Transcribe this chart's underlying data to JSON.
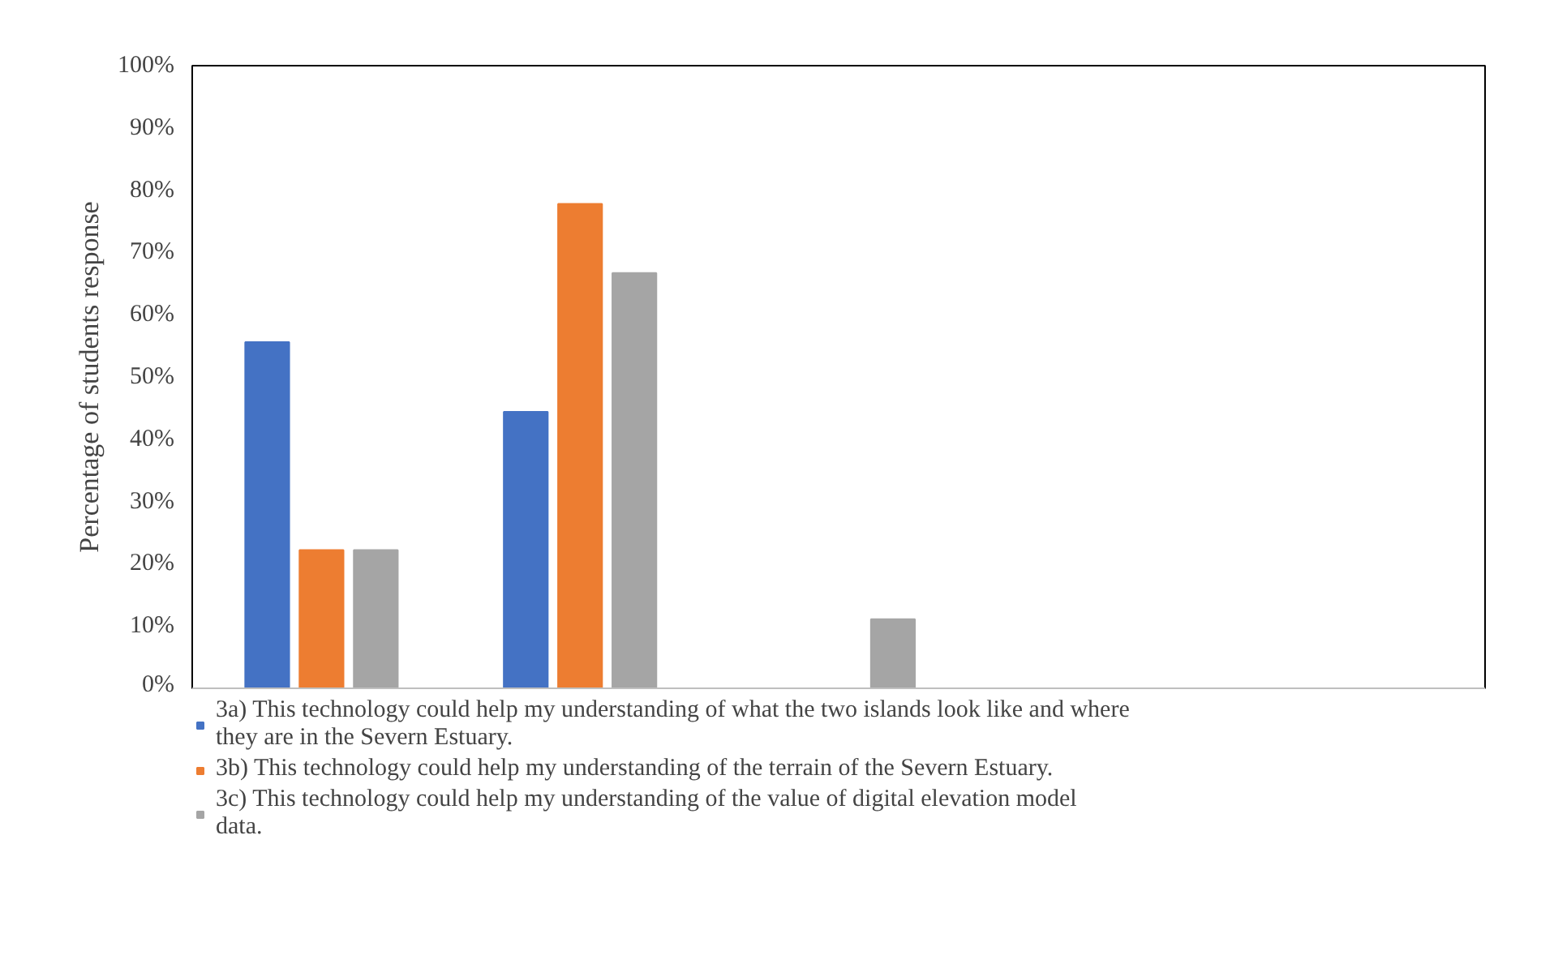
{
  "chart_data": {
    "type": "bar",
    "ylabel": "Percentage of students response",
    "categories": [
      null,
      null,
      null,
      null,
      null
    ],
    "series": [
      {
        "name": "3a) This technology could help my understanding of what the two islands look like and where they are in the Severn Estuary.",
        "color": "#4472c4",
        "values": [
          55.6,
          44.4,
          0,
          0,
          0
        ]
      },
      {
        "name": "3b) This technology could help my understanding of the terrain of the Severn Estuary.",
        "color": "#ed7d31",
        "values": [
          22.2,
          77.8,
          0,
          0,
          0
        ]
      },
      {
        "name": "3c) This technology could help my understanding of the value of digital elevation model data.",
        "color": "#a5a5a5",
        "values": [
          22.2,
          66.7,
          11.1,
          0,
          0
        ]
      }
    ],
    "ylim": [
      0,
      100
    ],
    "yticks": [
      {
        "value": 0,
        "label": "0%"
      },
      {
        "value": 10,
        "label": "10%"
      },
      {
        "value": 20,
        "label": "20%"
      },
      {
        "value": 30,
        "label": "30%"
      },
      {
        "value": 40,
        "label": "40%"
      },
      {
        "value": 50,
        "label": "50%"
      },
      {
        "value": 60,
        "label": "60%"
      },
      {
        "value": 70,
        "label": "70%"
      },
      {
        "value": 80,
        "label": "80%"
      },
      {
        "value": 90,
        "label": "90%"
      },
      {
        "value": 100,
        "label": "100%"
      }
    ],
    "grid": false,
    "legend": "bottom"
  }
}
